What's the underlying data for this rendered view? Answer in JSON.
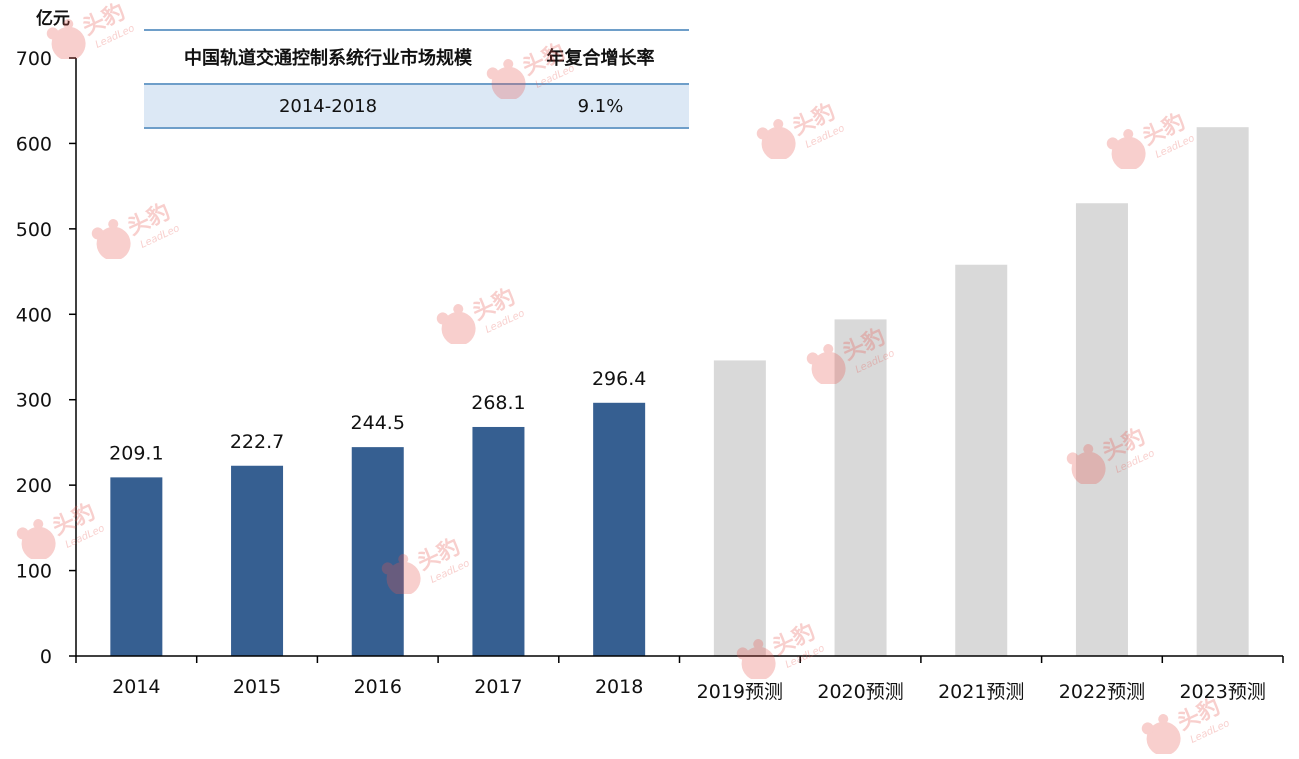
{
  "chart_data": {
    "type": "bar",
    "y_unit": "亿元",
    "categories": [
      "2014",
      "2015",
      "2016",
      "2017",
      "2018",
      "2019预测",
      "2020预测",
      "2021预测",
      "2022预测",
      "2023预测"
    ],
    "values": [
      209.1,
      222.7,
      244.5,
      268.1,
      296.4,
      346,
      394,
      458,
      530,
      619
    ],
    "data_labels": [
      "209.1",
      "222.7",
      "244.5",
      "268.1",
      "296.4",
      "",
      "",
      "",
      "",
      ""
    ],
    "forecast": [
      false,
      false,
      false,
      false,
      false,
      true,
      true,
      true,
      true,
      true
    ],
    "ylim": [
      0,
      700
    ],
    "yticks": [
      0,
      100,
      200,
      300,
      400,
      500,
      600,
      700
    ],
    "grid": false,
    "colors": {
      "actual": "#365f91",
      "forecast": "#d9d9d9",
      "axis": "#000000"
    }
  },
  "cagr_table": {
    "header_metric": "中国轨道交通控制系统行业市场规模",
    "header_rate": "年复合增长率",
    "period": "2014-2018",
    "rate": "9.1%"
  },
  "watermark": {
    "brand": "头豹",
    "brand_en": "LeadLeo",
    "icon": "leopard-logo-icon",
    "color": "#e8554e"
  }
}
